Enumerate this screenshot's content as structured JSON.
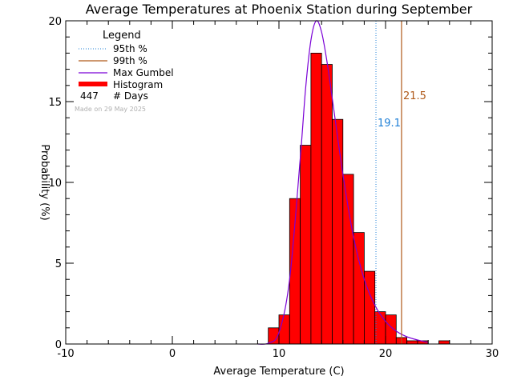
{
  "colors": {
    "bar_fill": "#ff0000",
    "bar_stroke": "#000000",
    "gumbel": "#7a00d6",
    "p95": "#1e7fd6",
    "p99": "#b05a1a"
  },
  "chart_data": {
    "type": "bar",
    "title": "Average Temperatures at Phoenix Station during September",
    "xlabel": "Average Temperature (C)",
    "ylabel": "Probability (%)",
    "xlim": [
      -10,
      30
    ],
    "ylim": [
      0,
      20
    ],
    "x_ticks": [
      "-10",
      "0",
      "10",
      "20",
      "30"
    ],
    "y_ticks": [
      "0",
      "5",
      "10",
      "15",
      "20"
    ],
    "histogram": {
      "bin_width": 1,
      "bin_left_edges": [
        9,
        10,
        11,
        12,
        13,
        14,
        15,
        16,
        17,
        18,
        19,
        20,
        21,
        22,
        23,
        24,
        25
      ],
      "values": [
        1.0,
        1.8,
        9.0,
        12.3,
        18.0,
        17.3,
        13.9,
        10.5,
        6.9,
        4.5,
        2.0,
        1.8,
        0.4,
        0.2,
        0.2,
        0.0,
        0.2
      ]
    },
    "gumbel": {
      "peak_value": 20.0,
      "x": [
        8.0,
        9.0,
        10.0,
        11.0,
        12.0,
        12.5,
        13.0,
        13.5,
        14.0,
        14.5,
        15.0,
        16.0,
        17.0,
        18.0,
        19.0,
        20.0,
        21.0,
        22.0,
        23.0,
        24.0
      ],
      "y": [
        0.0,
        0.05,
        0.7,
        4.0,
        11.5,
        15.8,
        18.8,
        20.0,
        19.3,
        17.5,
        15.2,
        10.5,
        6.6,
        4.0,
        2.4,
        1.4,
        0.8,
        0.45,
        0.25,
        0.1
      ]
    },
    "percentiles": [
      {
        "name": "95th %",
        "value": 19.1,
        "label": "19.1"
      },
      {
        "name": "99th %",
        "value": 21.5,
        "label": "21.5"
      }
    ],
    "legend": {
      "title": "Legend",
      "placement": "top-left",
      "entries": [
        "95th %",
        "99th %",
        "Max Gumbel",
        "Histogram"
      ],
      "count_value": "447",
      "count_label": "# Days"
    },
    "made_on": "Made on 29 May 2025"
  }
}
